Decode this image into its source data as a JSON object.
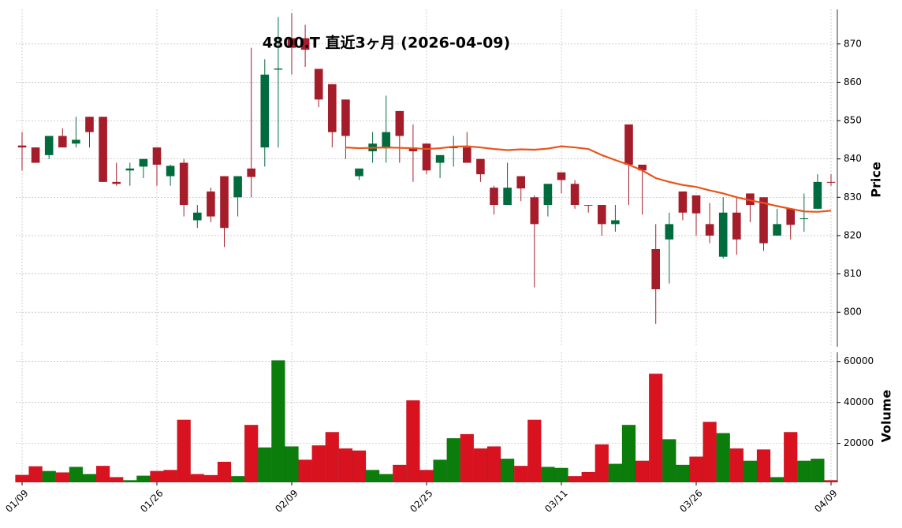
{
  "chart_data": {
    "type": "candlestick",
    "title": "4800.T 直近3ヶ月 (2026-04-09)",
    "categories": [
      "01/09",
      null,
      null,
      null,
      null,
      null,
      null,
      null,
      null,
      null,
      "01/26",
      null,
      null,
      null,
      null,
      null,
      null,
      null,
      null,
      null,
      "02/09",
      null,
      null,
      null,
      null,
      null,
      null,
      null,
      null,
      null,
      "02/25",
      null,
      null,
      null,
      null,
      null,
      null,
      null,
      null,
      null,
      "03/11",
      null,
      null,
      null,
      null,
      null,
      null,
      null,
      null,
      null,
      "03/26",
      null,
      null,
      null,
      null,
      null,
      null,
      null,
      null,
      null,
      "04/09"
    ],
    "open": [
      843.5,
      843,
      841,
      846,
      844,
      851,
      851,
      834,
      837,
      838,
      843,
      835.5,
      839,
      824,
      831.5,
      835.5,
      830,
      837.5,
      843,
      863.3,
      871.5,
      871.5,
      863.5,
      859.5,
      855.5,
      835.5,
      842,
      843,
      852.5,
      843,
      844,
      839,
      842.8,
      843,
      840,
      832.5,
      828,
      835.5,
      830,
      828,
      836.5,
      833.5,
      828,
      828,
      823,
      849,
      838.5,
      816.5,
      819,
      831.5,
      830.5,
      823,
      814.5,
      826,
      831,
      830,
      820,
      827,
      824.3,
      827,
      834
    ],
    "high": [
      847,
      843,
      846,
      848,
      851,
      851,
      851,
      839,
      839,
      840,
      843,
      838.5,
      840,
      828,
      832.5,
      835.5,
      835.5,
      869,
      866,
      877,
      878,
      875,
      863.5,
      859.5,
      855.5,
      837.5,
      847,
      856.5,
      852.5,
      849,
      844,
      841,
      846,
      847,
      840,
      833,
      839,
      835.5,
      830.5,
      833.5,
      836.5,
      834.5,
      828,
      828,
      828,
      849,
      838.5,
      823,
      826,
      831.5,
      830.5,
      828.5,
      830,
      830,
      831,
      830,
      827,
      827,
      831,
      836,
      836
    ],
    "low": [
      837,
      839,
      840,
      843,
      843,
      843,
      834,
      833,
      833,
      835,
      833,
      833,
      825,
      822,
      823.5,
      817,
      825,
      830,
      838,
      843,
      862,
      864,
      853.5,
      843,
      840,
      834.5,
      839,
      839,
      839,
      834,
      836,
      835,
      838,
      839,
      834,
      825.5,
      828,
      829,
      806.5,
      825,
      831,
      827,
      826,
      820,
      821,
      828,
      825.5,
      797,
      807.5,
      824,
      820,
      818,
      814,
      815,
      823.5,
      816,
      820,
      819,
      821,
      827,
      833
    ],
    "close": [
      843,
      839,
      846,
      843,
      845,
      847,
      834,
      833.5,
      837.5,
      840,
      838.5,
      838.2,
      828,
      826,
      825,
      822,
      835.5,
      835.3,
      862,
      863.6,
      869,
      868.5,
      855.5,
      847,
      846,
      837.5,
      844,
      847,
      846,
      842,
      837,
      841,
      843,
      839,
      836,
      828,
      832.5,
      832.3,
      823,
      833.5,
      834.5,
      828,
      827.8,
      823,
      824,
      838.5,
      837,
      806,
      823,
      826,
      825.8,
      820,
      826,
      819,
      828,
      818,
      823,
      822.8,
      824.5,
      834,
      833.8
    ],
    "volume": [
      4600,
      8800,
      6500,
      5800,
      8500,
      5000,
      9000,
      3500,
      2000,
      4200,
      6500,
      7000,
      31500,
      5000,
      4500,
      11000,
      4000,
      29000,
      18000,
      60500,
      18500,
      12000,
      19000,
      25500,
      17500,
      16500,
      7000,
      5000,
      9500,
      41000,
      7000,
      12000,
      22500,
      24500,
      17500,
      18500,
      12500,
      9000,
      31500,
      8500,
      8000,
      4000,
      6000,
      19500,
      10000,
      29000,
      11500,
      54000,
      22000,
      9500,
      13500,
      30500,
      25000,
      17500,
      11500,
      17000,
      3500,
      25500,
      11500,
      12500,
      2000
    ],
    "ma": {
      "color": "#e8541a",
      "values": [
        null,
        null,
        null,
        null,
        null,
        null,
        null,
        null,
        null,
        null,
        null,
        null,
        null,
        null,
        null,
        null,
        null,
        null,
        null,
        null,
        null,
        null,
        null,
        null,
        843,
        842.8,
        842.9,
        843,
        842.9,
        842.8,
        842.6,
        842.8,
        843.2,
        843.3,
        843,
        842.6,
        842.3,
        842.5,
        842.4,
        842.7,
        843.3,
        843,
        842.6,
        841,
        839.7,
        838.5,
        837,
        835,
        834,
        833.2,
        832.7,
        831.8,
        831,
        830,
        829.2,
        828.5,
        827.7,
        827,
        826.3,
        826.2,
        826.5
      ]
    },
    "up_color": "#006b3c",
    "down_color": "#a51c2a",
    "volume_up_color": "#0a7d0a",
    "volume_down_color": "#d8121f",
    "ylim": [
      791,
      879
    ],
    "yticks": [
      800,
      810,
      820,
      830,
      840,
      850,
      860,
      870
    ],
    "volume_ylim": [
      1000,
      64500
    ],
    "volume_yticks": [
      20000,
      40000,
      60000
    ],
    "y_label": "Price",
    "volume_label": "Volume",
    "grid": true
  }
}
